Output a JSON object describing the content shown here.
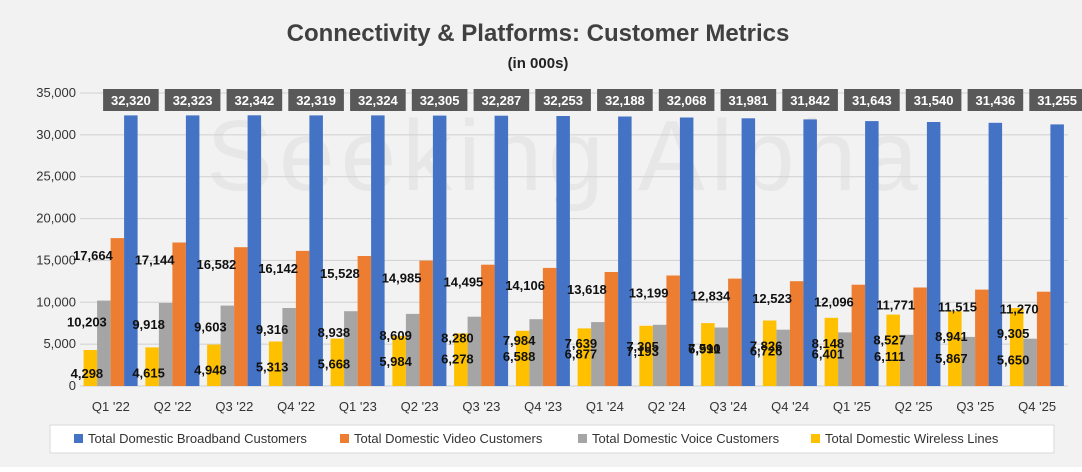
{
  "chart_data": {
    "type": "bar",
    "title": "Connectivity & Platforms: Customer Metrics",
    "subtitle": "(in 000s)",
    "watermark": "Seeking Alpha",
    "ylim": [
      0,
      35000
    ],
    "yticks": [
      "0",
      "5,000",
      "10,000",
      "15,000",
      "20,000",
      "25,000",
      "30,000",
      "35,000"
    ],
    "categories": [
      "Q1 '22",
      "Q2 '22",
      "Q3 '22",
      "Q4 '22",
      "Q1 '23",
      "Q2 '23",
      "Q3 '23",
      "Q4 '23",
      "Q1 '24",
      "Q2 '24",
      "Q3 '24",
      "Q4 '24",
      "Q1 '25",
      "Q2 '25",
      "Q3 '25",
      "Q4 '25"
    ],
    "series": [
      {
        "name": "Total Domestic Wireless Lines",
        "color": "#ffc000",
        "values": [
          4298,
          4615,
          4948,
          5313,
          5668,
          5984,
          6278,
          6588,
          6877,
          7193,
          7510,
          7826,
          8148,
          8527,
          8941,
          9305
        ],
        "labels": [
          "4,298",
          "4,615",
          "4,948",
          "5,313",
          "5,668",
          "5,984",
          "6,278",
          "6,588",
          "6,877",
          "7,193",
          "7,510",
          "7,826",
          "8,148",
          "8,527",
          "8,941",
          "9,305"
        ]
      },
      {
        "name": "Total Domestic Voice Customers",
        "color": "#a5a5a5",
        "values": [
          10203,
          9918,
          9603,
          9316,
          8938,
          8609,
          8280,
          7984,
          7639,
          7305,
          6991,
          6726,
          6401,
          6111,
          5867,
          5650
        ],
        "labels": [
          "10,203",
          "9,918",
          "9,603",
          "9,316",
          "8,938",
          "8,609",
          "8,280",
          "7,984",
          "7,639",
          "7,305",
          "6,991",
          "6,726",
          "6,401",
          "6,111",
          "5,867",
          "5,650"
        ]
      },
      {
        "name": "Total Domestic Video Customers",
        "color": "#ed7d31",
        "values": [
          17664,
          17144,
          16582,
          16142,
          15528,
          14985,
          14495,
          14106,
          13618,
          13199,
          12834,
          12523,
          12096,
          11771,
          11515,
          11270
        ],
        "labels": [
          "17,664",
          "17,144",
          "16,582",
          "16,142",
          "15,528",
          "14,985",
          "14,495",
          "14,106",
          "13,618",
          "13,199",
          "12,834",
          "12,523",
          "12,096",
          "11,771",
          "11,515",
          "11,270"
        ]
      },
      {
        "name": "Total Domestic Broadband Customers",
        "color": "#4472c4",
        "values": [
          32320,
          32323,
          32342,
          32319,
          32324,
          32305,
          32287,
          32253,
          32188,
          32068,
          31981,
          31842,
          31643,
          31540,
          31436,
          31255
        ],
        "labels": [
          "32,320",
          "32,323",
          "32,342",
          "32,319",
          "32,324",
          "32,305",
          "32,287",
          "32,253",
          "32,188",
          "32,068",
          "31,981",
          "31,842",
          "31,643",
          "31,540",
          "31,436",
          "31,255"
        ]
      }
    ],
    "legend": {
      "position": "bottom",
      "order": [
        "Total Domestic Broadband Customers",
        "Total Domestic Video Customers",
        "Total Domestic Voice Customers",
        "Total Domestic Wireless Lines"
      ]
    }
  }
}
